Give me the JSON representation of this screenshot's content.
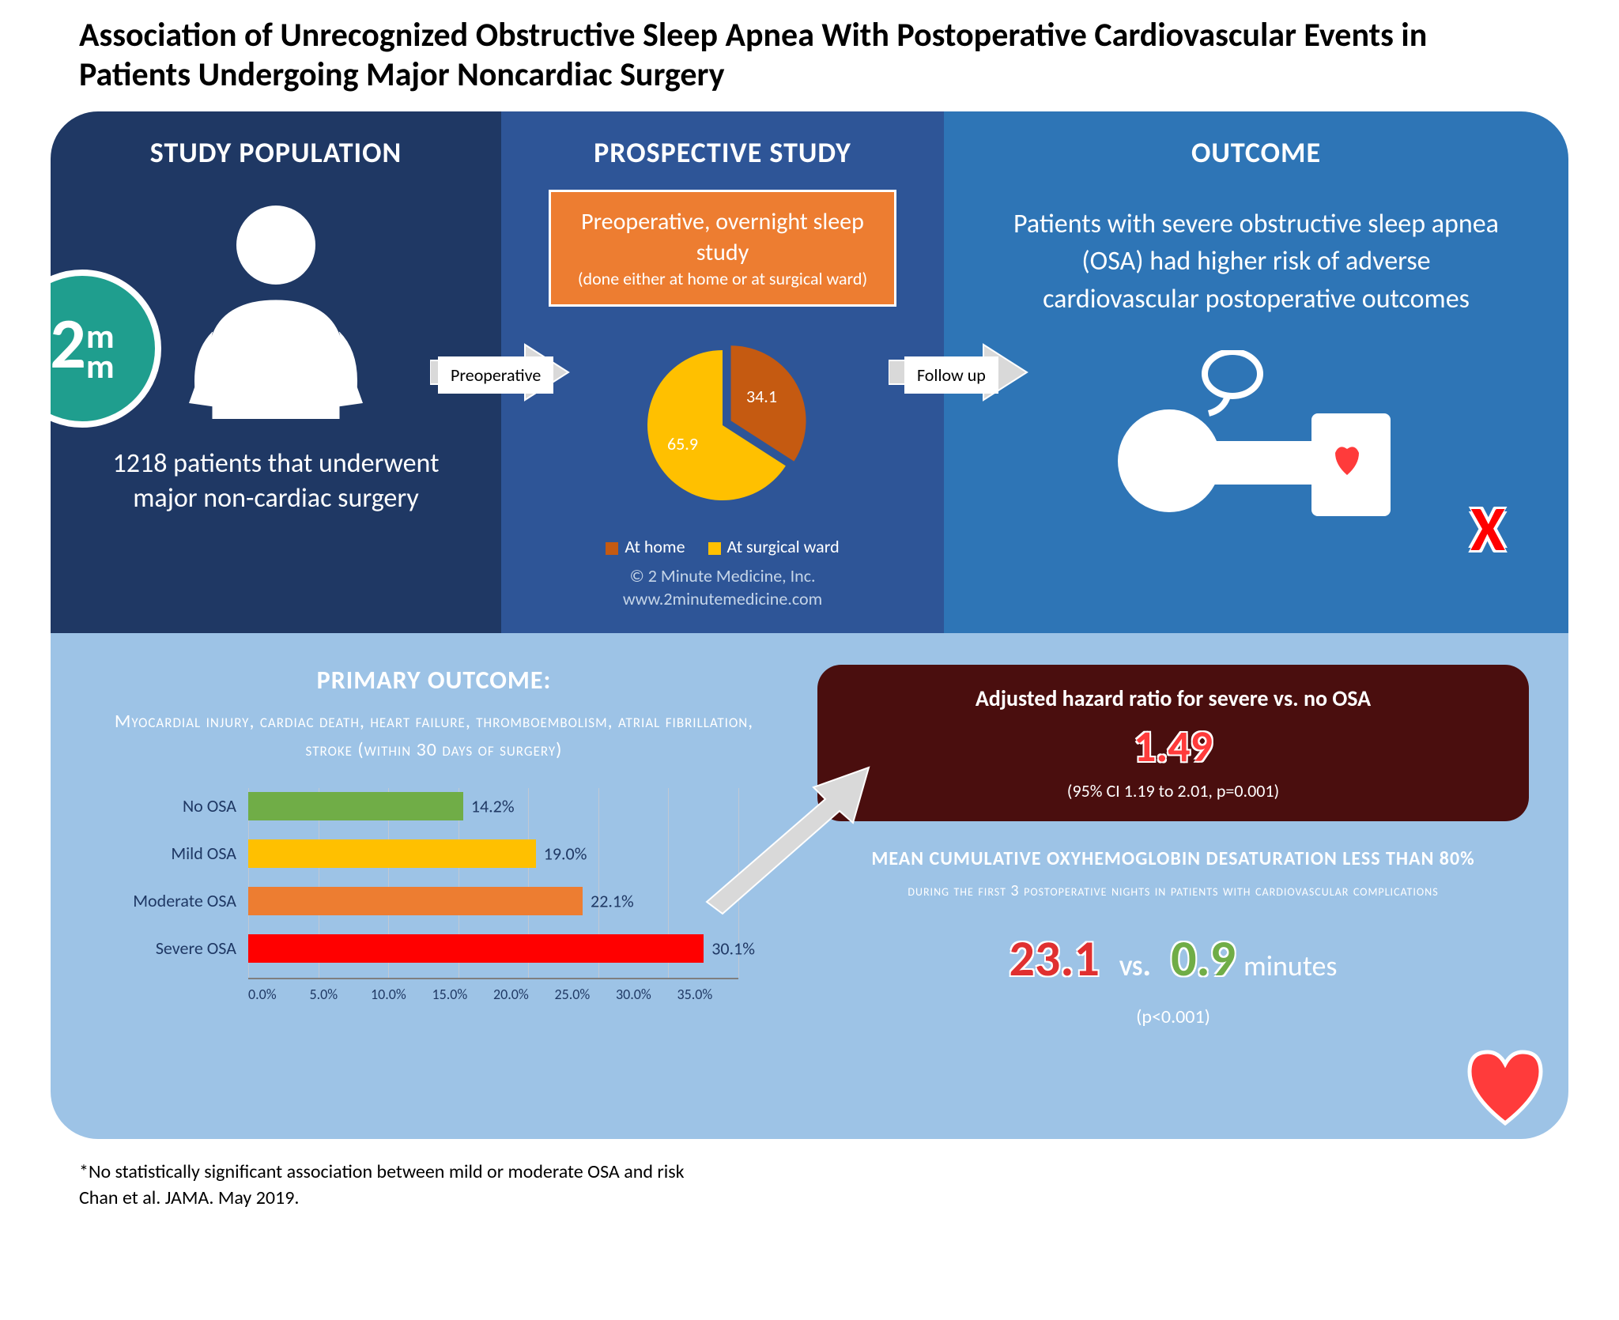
{
  "title": "Association of Unrecognized Obstructive Sleep Apnea With Postoperative Cardiovascular Events in Patients Undergoing Major Noncardiac Surgery",
  "panels": {
    "study_pop": {
      "heading": "STUDY POPULATION",
      "desc": "1218 patients that underwent major non-cardiac surgery"
    },
    "prospective": {
      "heading": "PROSPECTIVE STUDY",
      "box_main": "Preoperative, overnight sleep study",
      "box_sub": "(done either at home or at surgical ward)",
      "pie": {
        "slices": [
          {
            "label": "At home",
            "value": 34.1,
            "color": "#c55a11"
          },
          {
            "label": "At surgical ward",
            "value": 65.9,
            "color": "#ffc000"
          }
        ]
      },
      "copyright": "© 2 Minute Medicine, Inc.\nwww.2minutemedicine.com"
    },
    "outcome": {
      "heading": "OUTCOME",
      "text": "Patients with severe obstructive sleep apnea (OSA) had higher risk of adverse cardiovascular postoperative outcomes"
    }
  },
  "arrows": {
    "a1": "Preoperative",
    "a2": "Follow up"
  },
  "primary": {
    "title": "PRIMARY OUTCOME:",
    "sub": "Myocardial injury, cardiac death, heart failure, thromboembolism, atrial fibrillation, stroke (within 30 days of surgery)",
    "bars": [
      {
        "label": "No OSA",
        "value": 14.2,
        "color": "#70ad47"
      },
      {
        "label": "Mild OSA",
        "value": 19.0,
        "color": "#ffc000"
      },
      {
        "label": "Moderate OSA",
        "value": 22.1,
        "color": "#ed7d31"
      },
      {
        "label": "Severe OSA",
        "value": 30.1,
        "color": "#ff0000"
      }
    ],
    "axis_max": 35,
    "axis_step": 5
  },
  "hazard": {
    "title": "Adjusted hazard ratio for severe vs. no OSA",
    "value": "1.49",
    "ci": "(95% CI 1.19 to 2.01, p=0.001)"
  },
  "desat": {
    "title": "MEAN CUMULATIVE OXYHEMOGLOBIN DESATURATION LESS THAN 80%",
    "sub": "during the first 3 postoperative nights in patients with cardiovascular complications",
    "v1": "23.1",
    "vs": "vs.",
    "v2": "0.9",
    "unit": "minutes",
    "p": "(p<0.001)"
  },
  "footnote": "*No statistically significant association between mild or moderate OSA and risk\nChan et al. JAMA. May 2019.",
  "colors": {
    "panel1": "#1f3864",
    "panel2": "#2e5597",
    "panel3": "#2e75b6",
    "bottom": "#9dc3e6",
    "orange": "#ed7d31",
    "hazard_bg": "#4a0e0e"
  }
}
